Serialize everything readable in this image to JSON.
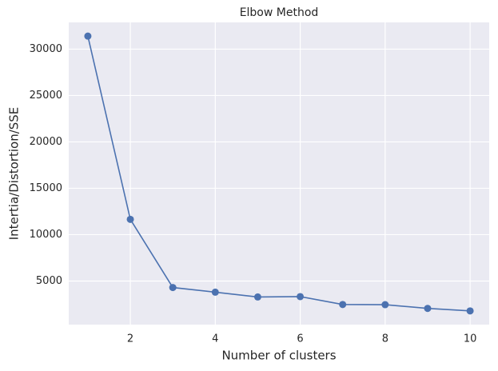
{
  "chart_data": {
    "type": "line",
    "title": "Elbow Method",
    "x_label": "Number of clusters",
    "y_label": "Intertia/Distortion/SSE",
    "x": [
      1,
      2,
      3,
      4,
      5,
      6,
      7,
      8,
      9,
      10
    ],
    "series": [
      {
        "color": "#4c72b0",
        "values": [
          31400,
          11650,
          4300,
          3800,
          3280,
          3320,
          2470,
          2450,
          2050,
          1780
        ]
      }
    ],
    "xlim": [
      0.55,
      10.45
    ],
    "xticks": [
      2,
      4,
      6,
      8,
      10
    ],
    "ylim": [
      300,
      32880
    ],
    "yticks": [
      5000,
      10000,
      15000,
      20000,
      25000,
      30000
    ],
    "grid": true
  }
}
